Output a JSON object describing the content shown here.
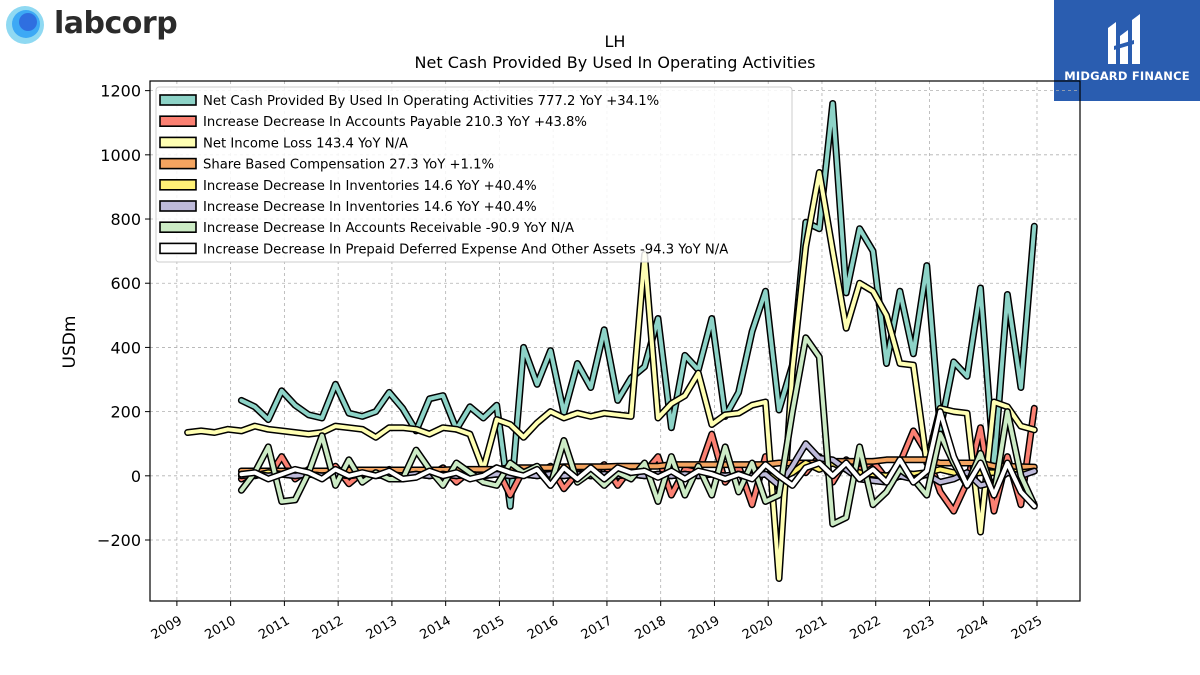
{
  "branding": {
    "left_logo_text": "labcorp",
    "right_logo_text": "MIDGARD FINANCE",
    "left_logo_color": "#3da9f5",
    "right_logo_bg": "#2a5db0"
  },
  "chart_data": {
    "type": "line",
    "title": "LH",
    "subtitle": "Net Cash Provided By Used In Operating Activities",
    "ylabel": "USDm",
    "xlabel": "",
    "xlim": [
      2008.5,
      2025.8
    ],
    "ylim": [
      -390,
      1230
    ],
    "x_ticks": [
      "2009",
      "2010",
      "2011",
      "2012",
      "2013",
      "2014",
      "2015",
      "2016",
      "2017",
      "2018",
      "2019",
      "2020",
      "2021",
      "2022",
      "2023",
      "2024",
      "2025"
    ],
    "y_ticks": [
      "1200",
      "1000",
      "800",
      "600",
      "400",
      "200",
      "0",
      "−200"
    ],
    "grid": true,
    "legend_position": "top-left",
    "series": [
      {
        "name": "Net Cash Provided By Used In Operating Activities",
        "legend": "Net Cash Provided By Used In Operating Activities  777.2 YoY +34.1%",
        "color": "#8dd3c7",
        "z": 1,
        "x": [
          2010.2,
          2010.45,
          2010.7,
          2010.95,
          2011.2,
          2011.45,
          2011.7,
          2011.95,
          2012.2,
          2012.45,
          2012.7,
          2012.95,
          2013.2,
          2013.45,
          2013.7,
          2013.95,
          2014.2,
          2014.45,
          2014.7,
          2014.95,
          2015.2,
          2015.45,
          2015.7,
          2015.95,
          2016.2,
          2016.45,
          2016.7,
          2016.95,
          2017.2,
          2017.45,
          2017.7,
          2017.95,
          2018.2,
          2018.45,
          2018.7,
          2018.95,
          2019.2,
          2019.45,
          2019.7,
          2019.95,
          2020.2,
          2020.45,
          2020.7,
          2020.95,
          2021.2,
          2021.45,
          2021.7,
          2021.95,
          2022.2,
          2022.45,
          2022.7,
          2022.95,
          2023.2,
          2023.45,
          2023.7,
          2023.95,
          2024.2,
          2024.45,
          2024.7,
          2024.95
        ],
        "y": [
          235,
          215,
          175,
          265,
          220,
          190,
          180,
          285,
          195,
          185,
          200,
          260,
          210,
          140,
          240,
          250,
          145,
          215,
          180,
          220,
          -95,
          400,
          285,
          390,
          195,
          350,
          275,
          455,
          235,
          305,
          340,
          490,
          150,
          375,
          330,
          490,
          185,
          260,
          450,
          575,
          205,
          345,
          790,
          770,
          1160,
          570,
          770,
          700,
          350,
          575,
          380,
          655,
          145,
          355,
          310,
          585,
          30,
          565,
          275,
          777.2
        ]
      },
      {
        "name": "Increase Decrease In Accounts Payable",
        "legend": "Increase Decrease In Accounts Payable  210.3 YoY +43.8%",
        "color": "#fb8072",
        "z": 2,
        "x": [
          2010.2,
          2010.45,
          2010.7,
          2010.95,
          2011.2,
          2011.45,
          2011.7,
          2011.95,
          2012.2,
          2012.45,
          2012.7,
          2012.95,
          2013.2,
          2013.45,
          2013.7,
          2013.95,
          2014.2,
          2014.45,
          2014.7,
          2014.95,
          2015.2,
          2015.45,
          2015.7,
          2015.95,
          2016.2,
          2016.45,
          2016.7,
          2016.95,
          2017.2,
          2017.45,
          2017.7,
          2017.95,
          2018.2,
          2018.45,
          2018.7,
          2018.95,
          2019.2,
          2019.45,
          2019.7,
          2019.95,
          2020.2,
          2020.45,
          2020.7,
          2020.95,
          2021.2,
          2021.45,
          2021.7,
          2021.95,
          2022.2,
          2022.45,
          2022.7,
          2022.95,
          2023.2,
          2023.45,
          2023.7,
          2023.95,
          2024.2,
          2024.45,
          2024.7,
          2024.95
        ],
        "y": [
          -10,
          15,
          -5,
          60,
          -10,
          20,
          5,
          30,
          -25,
          10,
          5,
          20,
          -5,
          10,
          0,
          25,
          -20,
          15,
          0,
          25,
          -60,
          20,
          5,
          30,
          -40,
          10,
          0,
          35,
          -30,
          25,
          10,
          60,
          -60,
          20,
          10,
          130,
          -20,
          30,
          -90,
          60,
          -40,
          30,
          10,
          60,
          -20,
          50,
          20,
          45,
          -10,
          40,
          140,
          70,
          -50,
          -110,
          -20,
          150,
          -110,
          60,
          -90,
          210.3
        ]
      },
      {
        "name": "Net Income Loss",
        "legend": "Net Income Loss  143.4 YoY N/A",
        "color": "#ffffb3",
        "z": 3,
        "x": [
          2009.2,
          2009.45,
          2009.7,
          2009.95,
          2010.2,
          2010.45,
          2010.7,
          2010.95,
          2011.2,
          2011.45,
          2011.7,
          2011.95,
          2012.2,
          2012.45,
          2012.7,
          2012.95,
          2013.2,
          2013.45,
          2013.7,
          2013.95,
          2014.2,
          2014.45,
          2014.7,
          2014.95,
          2015.2,
          2015.45,
          2015.7,
          2015.95,
          2016.2,
          2016.45,
          2016.7,
          2016.95,
          2017.2,
          2017.45,
          2017.7,
          2017.95,
          2018.2,
          2018.45,
          2018.7,
          2018.95,
          2019.2,
          2019.45,
          2019.7,
          2019.95,
          2020.2,
          2020.45,
          2020.7,
          2020.95,
          2021.2,
          2021.45,
          2021.7,
          2021.95,
          2022.2,
          2022.45,
          2022.7,
          2022.95,
          2023.2,
          2023.45,
          2023.7,
          2023.95,
          2024.2,
          2024.45,
          2024.7,
          2024.95
        ],
        "y": [
          135,
          140,
          135,
          145,
          140,
          155,
          145,
          140,
          135,
          130,
          135,
          155,
          150,
          145,
          120,
          150,
          150,
          145,
          130,
          150,
          145,
          130,
          20,
          175,
          160,
          120,
          165,
          200,
          180,
          195,
          185,
          195,
          190,
          185,
          690,
          180,
          225,
          250,
          320,
          160,
          190,
          195,
          220,
          230,
          -320,
          330,
          715,
          945,
          700,
          460,
          600,
          575,
          500,
          350,
          345,
          40,
          210,
          200,
          195,
          -175,
          230,
          215,
          155,
          143.4
        ]
      },
      {
        "name": "Share Based Compensation",
        "legend": "Share Based Compensation  27.3 YoY +1.1%",
        "color": "#f4a460",
        "z": 4,
        "x": [
          2010.2,
          2010.45,
          2010.7,
          2010.95,
          2011.2,
          2011.45,
          2011.7,
          2011.95,
          2012.2,
          2012.45,
          2012.7,
          2012.95,
          2013.2,
          2013.45,
          2013.7,
          2013.95,
          2014.2,
          2014.45,
          2014.7,
          2014.95,
          2015.2,
          2015.45,
          2015.7,
          2015.95,
          2016.2,
          2016.45,
          2016.7,
          2016.95,
          2017.2,
          2017.45,
          2017.7,
          2017.95,
          2018.2,
          2018.45,
          2018.7,
          2018.95,
          2019.2,
          2019.45,
          2019.7,
          2019.95,
          2020.2,
          2020.45,
          2020.7,
          2020.95,
          2021.2,
          2021.45,
          2021.7,
          2021.95,
          2022.2,
          2022.45,
          2022.7,
          2022.95,
          2023.2,
          2023.45,
          2023.7,
          2023.95,
          2024.2,
          2024.45,
          2024.7,
          2024.95
        ],
        "y": [
          15,
          15,
          15,
          15,
          15,
          15,
          15,
          15,
          18,
          18,
          18,
          18,
          18,
          18,
          18,
          18,
          20,
          20,
          20,
          20,
          25,
          25,
          25,
          25,
          28,
          28,
          28,
          28,
          30,
          30,
          30,
          30,
          35,
          35,
          35,
          35,
          35,
          35,
          35,
          35,
          40,
          40,
          40,
          40,
          45,
          45,
          45,
          45,
          50,
          50,
          50,
          50,
          40,
          40,
          40,
          40,
          30,
          30,
          28,
          27.3
        ]
      },
      {
        "name": "Increase Decrease In Inventories",
        "legend": "Increase Decrease In Inventories  14.6 YoY +40.4%",
        "color": "#fff176",
        "z": 5,
        "x": [
          2010.2,
          2010.45,
          2010.7,
          2010.95,
          2011.2,
          2011.45,
          2011.7,
          2011.95,
          2012.2,
          2012.45,
          2012.7,
          2012.95,
          2013.2,
          2013.45,
          2013.7,
          2013.95,
          2014.2,
          2014.45,
          2014.7,
          2014.95,
          2015.2,
          2015.45,
          2015.7,
          2015.95,
          2016.2,
          2016.45,
          2016.7,
          2016.95,
          2017.2,
          2017.45,
          2017.7,
          2017.95,
          2018.2,
          2018.45,
          2018.7,
          2018.95,
          2019.2,
          2019.45,
          2019.7,
          2019.95,
          2020.2,
          2020.45,
          2020.7,
          2020.95,
          2021.2,
          2021.45,
          2021.7,
          2021.95,
          2022.2,
          2022.45,
          2022.7,
          2022.95,
          2023.2,
          2023.45,
          2023.7,
          2023.95,
          2024.2,
          2024.45,
          2024.7,
          2024.95
        ],
        "y": [
          5,
          0,
          10,
          5,
          0,
          5,
          0,
          5,
          0,
          5,
          5,
          0,
          0,
          5,
          0,
          5,
          0,
          5,
          0,
          5,
          0,
          5,
          0,
          5,
          0,
          5,
          0,
          5,
          0,
          5,
          0,
          5,
          0,
          5,
          0,
          5,
          0,
          5,
          0,
          5,
          -10,
          10,
          40,
          20,
          40,
          20,
          10,
          5,
          0,
          10,
          5,
          10,
          20,
          10,
          5,
          10,
          10,
          15,
          10,
          14.6
        ]
      },
      {
        "name": "Increase Decrease In Inventories",
        "legend": "Increase Decrease In Inventories  14.6 YoY +40.4%",
        "color": "#bebada",
        "z": 6,
        "x": [
          2010.2,
          2010.45,
          2010.7,
          2010.95,
          2011.2,
          2011.45,
          2011.7,
          2011.95,
          2012.2,
          2012.45,
          2012.7,
          2012.95,
          2013.2,
          2013.45,
          2013.7,
          2013.95,
          2014.2,
          2014.45,
          2014.7,
          2014.95,
          2015.2,
          2015.45,
          2015.7,
          2015.95,
          2016.2,
          2016.45,
          2016.7,
          2016.95,
          2017.2,
          2017.45,
          2017.7,
          2017.95,
          2018.2,
          2018.45,
          2018.7,
          2018.95,
          2019.2,
          2019.45,
          2019.7,
          2019.95,
          2020.2,
          2020.45,
          2020.7,
          2020.95,
          2021.2,
          2021.45,
          2021.7,
          2021.95,
          2022.2,
          2022.45,
          2022.7,
          2022.95,
          2023.2,
          2023.45,
          2023.7,
          2023.95,
          2024.2,
          2024.45,
          2024.7,
          2024.95
        ],
        "y": [
          0,
          5,
          0,
          5,
          0,
          5,
          0,
          5,
          0,
          5,
          0,
          5,
          0,
          5,
          0,
          5,
          0,
          5,
          0,
          5,
          0,
          5,
          0,
          5,
          0,
          5,
          0,
          5,
          0,
          5,
          0,
          5,
          0,
          5,
          0,
          5,
          0,
          5,
          0,
          5,
          -30,
          30,
          100,
          55,
          50,
          20,
          -10,
          -15,
          -20,
          0,
          -10,
          5,
          -20,
          -10,
          10,
          -30,
          -20,
          10,
          0,
          14.6
        ]
      },
      {
        "name": "Increase Decrease In Accounts Receivable",
        "legend": "Increase Decrease In Accounts Receivable  -90.9 YoY N/A",
        "color": "#ccebc5",
        "z": 7,
        "x": [
          2010.2,
          2010.45,
          2010.7,
          2010.95,
          2011.2,
          2011.45,
          2011.7,
          2011.95,
          2012.2,
          2012.45,
          2012.7,
          2012.95,
          2013.2,
          2013.45,
          2013.7,
          2013.95,
          2014.2,
          2014.45,
          2014.7,
          2014.95,
          2015.2,
          2015.45,
          2015.7,
          2015.95,
          2016.2,
          2016.45,
          2016.7,
          2016.95,
          2017.2,
          2017.45,
          2017.7,
          2017.95,
          2018.2,
          2018.45,
          2018.7,
          2018.95,
          2019.2,
          2019.45,
          2019.7,
          2019.95,
          2020.2,
          2020.45,
          2020.7,
          2020.95,
          2021.2,
          2021.45,
          2021.7,
          2021.95,
          2022.2,
          2022.45,
          2022.7,
          2022.95,
          2023.2,
          2023.45,
          2023.7,
          2023.95,
          2024.2,
          2024.45,
          2024.7,
          2024.95
        ],
        "y": [
          -45,
          10,
          90,
          -80,
          -75,
          10,
          125,
          -30,
          50,
          -20,
          10,
          -10,
          -10,
          80,
          20,
          -30,
          40,
          10,
          -20,
          -30,
          40,
          10,
          30,
          -30,
          110,
          -20,
          10,
          -30,
          10,
          -10,
          40,
          -80,
          60,
          -60,
          30,
          -60,
          90,
          -50,
          40,
          -80,
          -60,
          200,
          430,
          370,
          -150,
          -130,
          90,
          -90,
          -50,
          20,
          -10,
          -60,
          130,
          40,
          -30,
          70,
          -60,
          200,
          0,
          -90.9
        ]
      },
      {
        "name": "Increase Decrease In Prepaid Deferred Expense And Other Assets",
        "legend": "Increase Decrease In Prepaid Deferred Expense And Other Assets  -94.3 YoY N/A",
        "color": "#ffffff",
        "z": 8,
        "x": [
          2010.2,
          2010.45,
          2010.7,
          2010.95,
          2011.2,
          2011.45,
          2011.7,
          2011.95,
          2012.2,
          2012.45,
          2012.7,
          2012.95,
          2013.2,
          2013.45,
          2013.7,
          2013.95,
          2014.2,
          2014.45,
          2014.7,
          2014.95,
          2015.2,
          2015.45,
          2015.7,
          2015.95,
          2016.2,
          2016.45,
          2016.7,
          2016.95,
          2017.2,
          2017.45,
          2017.7,
          2017.95,
          2018.2,
          2018.45,
          2018.7,
          2018.95,
          2019.2,
          2019.45,
          2019.7,
          2019.95,
          2020.2,
          2020.45,
          2020.7,
          2020.95,
          2021.2,
          2021.45,
          2021.7,
          2021.95,
          2022.2,
          2022.45,
          2022.7,
          2022.95,
          2023.2,
          2023.45,
          2023.7,
          2023.95,
          2024.2,
          2024.45,
          2024.7,
          2024.95
        ],
        "y": [
          5,
          10,
          -10,
          5,
          20,
          10,
          -10,
          20,
          0,
          10,
          0,
          15,
          -10,
          -5,
          15,
          0,
          10,
          -10,
          0,
          25,
          10,
          0,
          20,
          -30,
          25,
          -10,
          25,
          -10,
          25,
          10,
          15,
          -5,
          15,
          -10,
          15,
          5,
          -10,
          5,
          -10,
          35,
          0,
          -30,
          25,
          40,
          0,
          40,
          -10,
          20,
          -20,
          50,
          -20,
          15,
          200,
          60,
          -30,
          40,
          -60,
          40,
          -50,
          -94.3
        ]
      }
    ]
  }
}
